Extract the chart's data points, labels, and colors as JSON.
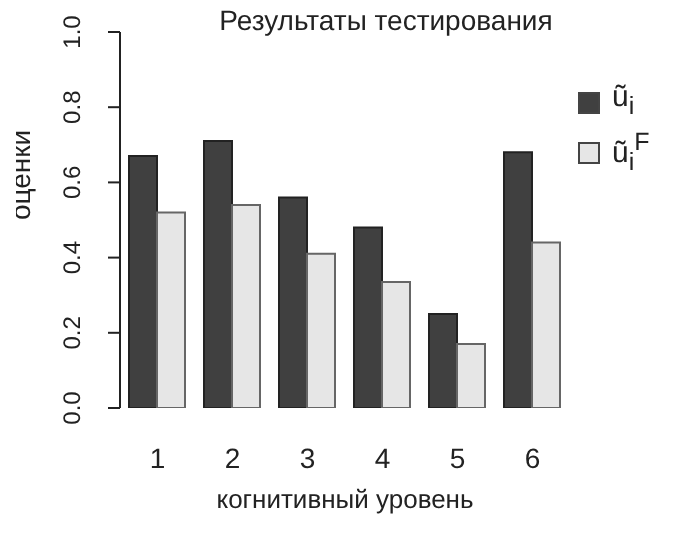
{
  "chart_data": {
    "type": "bar",
    "title": "Результаты тестирования",
    "xlabel": "когнитивный уровень",
    "ylabel": "оценки",
    "categories": [
      "1",
      "2",
      "3",
      "4",
      "5",
      "6"
    ],
    "series": [
      {
        "name": "ũ$_{i}$",
        "color": "#404040",
        "values": [
          0.67,
          0.71,
          0.56,
          0.48,
          0.25,
          0.68
        ]
      },
      {
        "name": "ũ$_{i}$$^{F}$",
        "color": "#e6e6e6",
        "values": [
          0.52,
          0.54,
          0.41,
          0.335,
          0.17,
          0.44
        ]
      }
    ],
    "ylim": [
      0,
      1
    ],
    "yticks": [
      {
        "value": 0,
        "label": "0.0"
      },
      {
        "value": 0.2,
        "label": "0.2"
      },
      {
        "value": 0.4,
        "label": "0.4"
      },
      {
        "value": 0.6,
        "label": "0.6"
      },
      {
        "value": 0.8,
        "label": "0.8"
      },
      {
        "value": 1,
        "label": "1.0"
      }
    ],
    "grid": false,
    "legend": "top right"
  }
}
